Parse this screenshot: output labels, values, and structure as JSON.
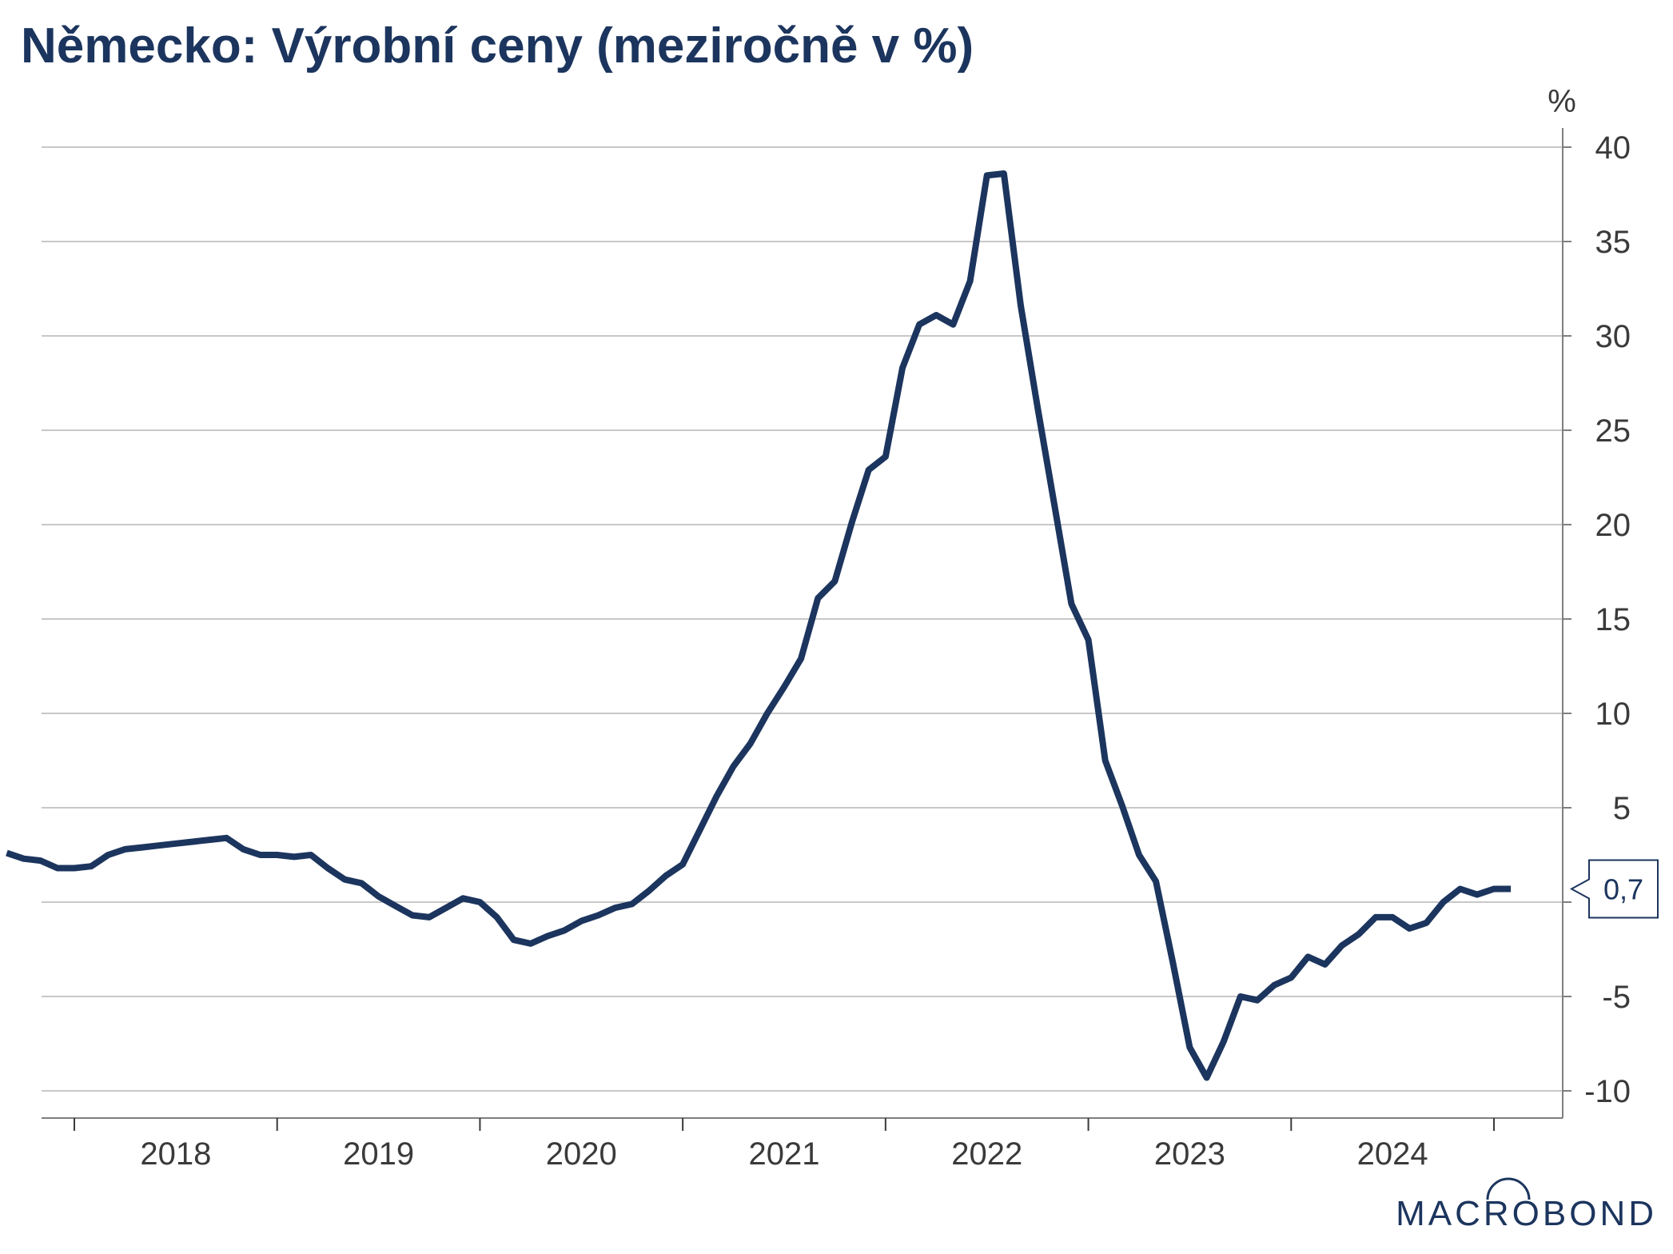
{
  "title": "Německo: Výrobní ceny (meziročně v %)",
  "logo": "MACROBOND",
  "chart_data": {
    "type": "line",
    "title": "Německo: Výrobní ceny (meziročně v %)",
    "ylabel": "%",
    "xlabel": "",
    "ylim": [
      -11,
      41
    ],
    "xlim": [
      "2017-08",
      "2025-03"
    ],
    "y_ticks": [
      40,
      35,
      30,
      25,
      20,
      15,
      10,
      5,
      0,
      -5,
      -10
    ],
    "y_tick_labels": [
      "40",
      "35",
      "30",
      "25",
      "20",
      "15",
      "10",
      "5",
      "",
      "-5",
      "-10"
    ],
    "x_tick_labels": [
      "2018",
      "2019",
      "2020",
      "2021",
      "2022",
      "2023",
      "2024"
    ],
    "grid": true,
    "legend": "none",
    "line_color": "#1c355e",
    "last_value_label": "0,7",
    "series": [
      {
        "x": [
          "2017-09",
          "2017-10",
          "2017-11",
          "2017-12",
          "2018-01",
          "2018-02",
          "2018-03",
          "2018-04",
          "2018-05",
          "2018-06",
          "2018-07",
          "2018-08",
          "2018-09",
          "2018-10",
          "2018-11",
          "2018-12",
          "2019-01",
          "2019-02",
          "2019-03",
          "2019-04",
          "2019-05",
          "2019-06",
          "2019-07",
          "2019-08",
          "2019-09",
          "2019-10",
          "2019-11",
          "2019-12",
          "2020-01",
          "2020-02",
          "2020-03",
          "2020-04",
          "2020-05",
          "2020-06",
          "2020-07",
          "2020-08",
          "2020-09",
          "2020-10",
          "2020-11",
          "2020-12",
          "2021-01",
          "2021-02",
          "2021-03",
          "2021-04",
          "2021-05",
          "2021-06",
          "2021-07",
          "2021-08",
          "2021-09",
          "2021-10",
          "2021-11",
          "2021-12",
          "2022-01",
          "2022-02",
          "2022-03",
          "2022-04",
          "2022-05",
          "2022-06",
          "2022-07",
          "2022-08",
          "2022-09",
          "2022-10",
          "2022-11",
          "2022-12",
          "2023-01",
          "2023-02",
          "2023-03",
          "2023-04",
          "2023-05",
          "2023-06",
          "2023-07",
          "2023-08",
          "2023-09",
          "2023-10",
          "2023-11",
          "2023-12",
          "2024-01",
          "2024-02",
          "2024-03",
          "2024-04",
          "2024-05",
          "2024-06",
          "2024-07",
          "2024-08",
          "2024-09",
          "2024-10",
          "2024-11",
          "2024-12",
          "2025-01",
          "2025-02"
        ],
        "values": [
          2.6,
          2.3,
          2.2,
          1.8,
          1.8,
          1.9,
          2.5,
          2.8,
          2.9,
          3.0,
          3.1,
          3.2,
          3.3,
          3.4,
          2.8,
          2.5,
          2.5,
          2.4,
          2.5,
          1.8,
          1.2,
          1.0,
          0.3,
          -0.2,
          -0.7,
          -0.8,
          -0.3,
          0.2,
          0.0,
          -0.8,
          -2.0,
          -2.2,
          -1.8,
          -1.5,
          -1.0,
          -0.7,
          -0.3,
          -0.1,
          0.6,
          1.4,
          2.0,
          3.8,
          5.6,
          7.2,
          8.4,
          10.0,
          11.4,
          12.9,
          16.1,
          17.0,
          20.1,
          22.9,
          23.6,
          28.3,
          30.6,
          31.1,
          30.6,
          32.9,
          38.5,
          38.6,
          31.6,
          26.2,
          21.0,
          15.8,
          13.9,
          7.5,
          5.1,
          2.5,
          1.1,
          -3.2,
          -7.7,
          -9.3,
          -7.4,
          -5.0,
          -5.2,
          -4.4,
          -4.0,
          -2.9,
          -3.3,
          -2.3,
          -1.7,
          -0.8,
          -0.8,
          -1.4,
          -1.1,
          0.0,
          0.7,
          0.4,
          0.7,
          0.7
        ]
      }
    ]
  }
}
